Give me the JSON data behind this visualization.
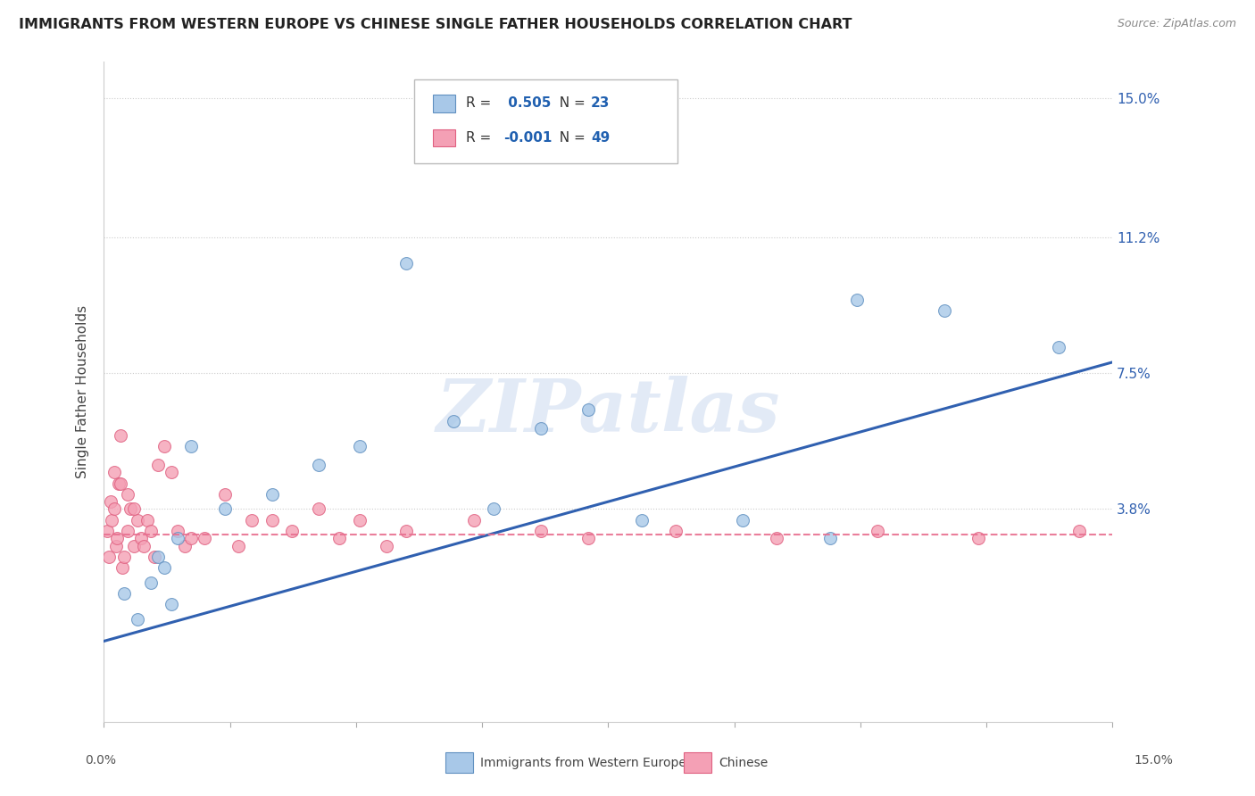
{
  "title": "IMMIGRANTS FROM WESTERN EUROPE VS CHINESE SINGLE FATHER HOUSEHOLDS CORRELATION CHART",
  "source": "Source: ZipAtlas.com",
  "ylabel": "Single Father Households",
  "xmin": 0.0,
  "xmax": 15.0,
  "ymin": -2.0,
  "ymax": 16.0,
  "ytick_labels": [
    "3.8%",
    "7.5%",
    "11.2%",
    "15.0%"
  ],
  "ytick_values": [
    3.8,
    7.5,
    11.2,
    15.0
  ],
  "blue_R": 0.505,
  "blue_N": 23,
  "pink_R": -0.001,
  "pink_N": 49,
  "legend_label_blue": "Immigrants from Western Europe",
  "legend_label_pink": "Chinese",
  "blue_color": "#a8c8e8",
  "pink_color": "#f4a0b5",
  "blue_edge_color": "#6090c0",
  "pink_edge_color": "#e06080",
  "blue_line_color": "#3060b0",
  "pink_line_color": "#e87090",
  "watermark": "ZIPatlas",
  "blue_trend_start_y": 0.2,
  "blue_trend_end_y": 7.8,
  "pink_trend_y": 3.1,
  "blue_scatter_x": [
    0.3,
    0.5,
    0.7,
    0.8,
    0.9,
    1.0,
    1.1,
    1.3,
    1.8,
    2.5,
    3.2,
    3.8,
    4.5,
    5.2,
    5.8,
    6.5,
    7.2,
    8.0,
    9.5,
    10.8,
    11.2,
    12.5,
    14.2
  ],
  "blue_scatter_y": [
    1.5,
    0.8,
    1.8,
    2.5,
    2.2,
    1.2,
    3.0,
    5.5,
    3.8,
    4.2,
    5.0,
    5.5,
    10.5,
    6.2,
    3.8,
    6.0,
    6.5,
    3.5,
    3.5,
    3.0,
    9.5,
    9.2,
    8.2
  ],
  "pink_scatter_x": [
    0.05,
    0.08,
    0.1,
    0.12,
    0.15,
    0.18,
    0.2,
    0.22,
    0.25,
    0.28,
    0.3,
    0.35,
    0.4,
    0.45,
    0.5,
    0.55,
    0.6,
    0.65,
    0.7,
    0.75,
    0.8,
    0.9,
    1.0,
    1.1,
    1.2,
    1.5,
    1.8,
    2.0,
    2.5,
    2.8,
    3.2,
    3.8,
    4.5,
    5.5,
    6.5,
    7.2,
    8.5,
    10.0,
    11.5,
    13.0,
    14.5,
    0.15,
    0.25,
    0.35,
    0.45,
    1.3,
    2.2,
    3.5,
    4.2
  ],
  "pink_scatter_y": [
    3.2,
    2.5,
    4.0,
    3.5,
    3.8,
    2.8,
    3.0,
    4.5,
    5.8,
    2.2,
    2.5,
    3.2,
    3.8,
    2.8,
    3.5,
    3.0,
    2.8,
    3.5,
    3.2,
    2.5,
    5.0,
    5.5,
    4.8,
    3.2,
    2.8,
    3.0,
    4.2,
    2.8,
    3.5,
    3.2,
    3.8,
    3.5,
    3.2,
    3.5,
    3.2,
    3.0,
    3.2,
    3.0,
    3.2,
    3.0,
    3.2,
    4.8,
    4.5,
    4.2,
    3.8,
    3.0,
    3.5,
    3.0,
    2.8
  ]
}
